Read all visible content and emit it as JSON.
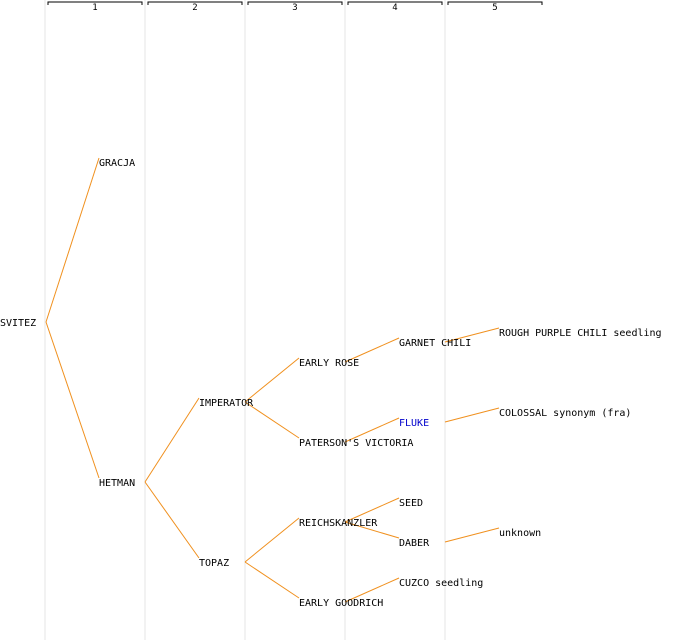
{
  "columns": [
    {
      "number": "1"
    },
    {
      "number": "2"
    },
    {
      "number": "3"
    },
    {
      "number": "4"
    },
    {
      "number": "5"
    }
  ],
  "colors": {
    "edge": "#f0901e",
    "text": "#000000",
    "link_text": "#0000cc",
    "guide": "#e6e6e6"
  },
  "nodes": [
    {
      "id": "svitez",
      "label": "SVITEZ",
      "gen": 0,
      "parent": null
    },
    {
      "id": "gracja",
      "label": "GRACJA",
      "gen": 1,
      "parent": "svitez"
    },
    {
      "id": "hetman",
      "label": "HETMAN",
      "gen": 1,
      "parent": "svitez"
    },
    {
      "id": "imperator",
      "label": "IMPERATOR",
      "gen": 2,
      "parent": "hetman"
    },
    {
      "id": "topaz",
      "label": "TOPAZ",
      "gen": 2,
      "parent": "hetman"
    },
    {
      "id": "early-rose",
      "label": "EARLY ROSE",
      "gen": 3,
      "parent": "imperator"
    },
    {
      "id": "patersons-victoria",
      "label": "PATERSON'S VICTORIA",
      "gen": 3,
      "parent": "imperator"
    },
    {
      "id": "reichskanzler",
      "label": "REICHSKANZLER",
      "gen": 3,
      "parent": "topaz"
    },
    {
      "id": "early-goodrich",
      "label": "EARLY GOODRICH",
      "gen": 3,
      "parent": "topaz"
    },
    {
      "id": "garnet-chili",
      "label": "GARNET CHILI",
      "gen": 4,
      "parent": "early-rose"
    },
    {
      "id": "fluke",
      "label": "FLUKE",
      "gen": 4,
      "parent": "patersons-victoria",
      "link": true
    },
    {
      "id": "seed",
      "label": "SEED",
      "gen": 4,
      "parent": "reichskanzler"
    },
    {
      "id": "daber",
      "label": "DABER",
      "gen": 4,
      "parent": "reichskanzler"
    },
    {
      "id": "cuzco-seedling",
      "label": "CUZCO seedling",
      "gen": 4,
      "parent": "early-goodrich"
    },
    {
      "id": "rough-purple-chili",
      "label": "ROUGH PURPLE CHILI seedling",
      "gen": 5,
      "parent": "garnet-chili"
    },
    {
      "id": "colossal",
      "label": "COLOSSAL synonym (fra)",
      "gen": 5,
      "parent": "fluke"
    },
    {
      "id": "unknown",
      "label": "unknown",
      "gen": 5,
      "parent": "daber"
    }
  ]
}
